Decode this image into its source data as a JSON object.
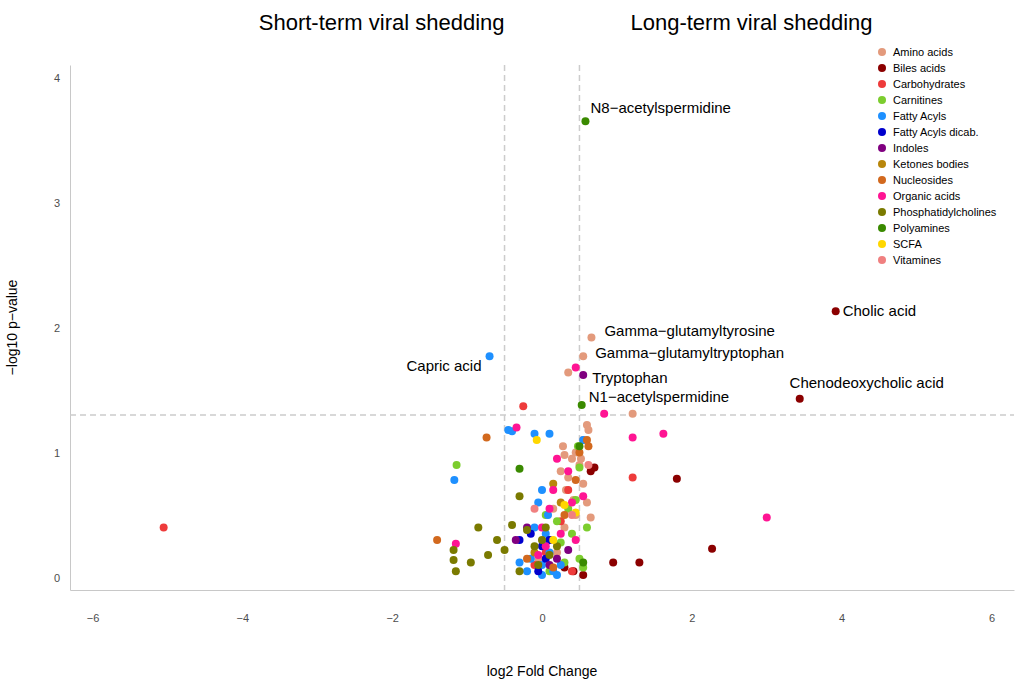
{
  "chart_data": {
    "type": "scatter",
    "headers": [
      "Short-term viral shedding",
      "Long-term viral shedding"
    ],
    "x_label": "log2 Fold Change",
    "y_label": "−log10 p−value",
    "xlim": [
      -6.3,
      6.3
    ],
    "xticks": [
      {
        "value": -6,
        "label": "−6"
      },
      {
        "value": -4,
        "label": "−4"
      },
      {
        "value": -2,
        "label": "−2"
      },
      0,
      2,
      4,
      6
    ],
    "ylim": [
      -0.1,
      4.1
    ],
    "yticks": [
      0,
      1,
      2,
      3,
      4
    ],
    "grid": false,
    "legend": "top-right",
    "thresholds": {
      "x": [
        -0.5,
        0.5
      ],
      "y": 1.3
    },
    "series": [
      {
        "name": "Amino acids",
        "color": "#e39a7c",
        "x": [
          0.66,
          0.55,
          0.35,
          1.21,
          0.6,
          0.62,
          0.55,
          0.45,
          0.3,
          0.4,
          0.5,
          0.25,
          0.35,
          0.55,
          0.6,
          0.45,
          0.3,
          0.1,
          0.2,
          -0.05,
          0.65,
          0.42,
          0.15,
          0.32,
          0.52,
          0.28
        ],
        "values": [
          1.92,
          1.77,
          1.64,
          1.31,
          1.22,
          1.18,
          1.1,
          1.0,
          0.98,
          0.95,
          0.9,
          0.85,
          0.8,
          0.75,
          0.6,
          0.5,
          0.4,
          0.3,
          0.2,
          0.15,
          0.48,
          0.62,
          0.55,
          0.7,
          0.95,
          1.05
        ]
      },
      {
        "name": "Biles acids",
        "color": "#8b0000",
        "x": [
          3.92,
          3.44,
          1.8,
          2.27,
          1.3,
          0.95,
          0.7,
          0.65,
          0.55,
          0.3,
          0.42
        ],
        "values": [
          2.13,
          1.43,
          0.79,
          0.23,
          0.12,
          0.12,
          0.88,
          0.85,
          0.02,
          0.08,
          0.05
        ]
      },
      {
        "name": "Carbohydrates",
        "color": "#ee3b3b",
        "x": [
          -5.05,
          1.21,
          -0.25,
          0.35,
          0.1,
          0.05,
          -0.1,
          0.25,
          0.4
        ],
        "values": [
          0.4,
          0.8,
          1.37,
          0.7,
          0.3,
          0.2,
          0.1,
          0.45,
          0.05
        ]
      },
      {
        "name": "Carnitines",
        "color": "#7ccd2e",
        "x": [
          -1.14,
          0.5,
          0.45,
          0.35,
          0.2,
          0.6,
          0.4,
          0.3,
          0.1,
          0.55,
          0.25,
          0.48,
          0.05,
          0.5
        ],
        "values": [
          0.9,
          0.88,
          0.62,
          0.55,
          0.45,
          0.4,
          0.35,
          0.12,
          0.05,
          0.08,
          0.28,
          1.05,
          0.5,
          0.15
        ]
      },
      {
        "name": "Fatty Acyls",
        "color": "#1e90ff",
        "x": [
          -0.7,
          -0.45,
          -0.4,
          -1.17,
          0.55,
          -0.1,
          0.1,
          0.0,
          -0.05,
          0.05,
          0.1,
          -0.15,
          0.0,
          0.15,
          -0.2,
          0.05,
          -0.1,
          0.2,
          -0.3,
          0.25,
          0.08,
          0.0
        ],
        "values": [
          1.77,
          1.18,
          1.17,
          0.78,
          1.1,
          1.15,
          1.15,
          0.7,
          0.6,
          0.28,
          0.2,
          0.15,
          0.1,
          0.05,
          0.05,
          0.35,
          0.4,
          0.02,
          0.12,
          0.1,
          0.5,
          0.02
        ]
      },
      {
        "name": "Fatty Acyls dicab.",
        "color": "#0000cd",
        "x": [
          -0.3,
          -0.15,
          0.0,
          0.05,
          -0.05,
          0.1
        ],
        "values": [
          0.3,
          0.35,
          0.25,
          0.15,
          0.05,
          0.3
        ]
      },
      {
        "name": "Indoles",
        "color": "#800080",
        "x": [
          0.55,
          -0.2,
          0.1,
          -0.35,
          0.35,
          0.2
        ],
        "values": [
          1.62,
          0.4,
          0.1,
          0.3,
          0.22,
          0.15
        ]
      },
      {
        "name": "Ketones bodies",
        "color": "#b8860b",
        "x": [
          0.25,
          -0.1,
          0.15
        ],
        "values": [
          0.6,
          0.2,
          0.75
        ]
      },
      {
        "name": "Nucleosides",
        "color": "#d2691e",
        "x": [
          -0.74,
          -1.4,
          0.6,
          0.62,
          0.5,
          0.3,
          0.45,
          -0.2,
          0.15
        ],
        "values": [
          1.12,
          0.3,
          1.1,
          1.05,
          1.0,
          0.5,
          0.78,
          0.15,
          0.08
        ]
      },
      {
        "name": "Organic acids",
        "color": "#ff1493",
        "x": [
          3.0,
          1.62,
          0.83,
          0.45,
          1.21,
          -1.15,
          -0.34,
          0.2,
          0.15,
          0.35,
          0.0,
          0.05,
          -0.05,
          0.25,
          0.4,
          0.45,
          0.55,
          0.1
        ],
        "values": [
          0.48,
          1.15,
          1.31,
          1.68,
          1.12,
          0.27,
          1.2,
          0.95,
          0.7,
          0.85,
          0.4,
          0.25,
          0.18,
          0.35,
          0.6,
          0.3,
          0.65,
          0.55
        ]
      },
      {
        "name": "Phosphatidylcholines",
        "color": "#7a7a00",
        "x": [
          -1.18,
          -1.15,
          -1.18,
          -0.95,
          -0.85,
          -0.72,
          -0.6,
          -0.5,
          -0.4,
          -0.3,
          -0.2,
          -0.1,
          0.0,
          0.1,
          -0.05,
          0.05,
          0.2,
          -0.3
        ],
        "values": [
          0.22,
          0.05,
          0.14,
          0.12,
          0.4,
          0.18,
          0.3,
          0.22,
          0.42,
          0.65,
          0.38,
          0.25,
          0.3,
          0.18,
          0.1,
          0.4,
          0.25,
          0.05
        ]
      },
      {
        "name": "Polyamines",
        "color": "#3a8a00",
        "x": [
          0.58,
          0.53,
          -0.3,
          0.5,
          0.55
        ],
        "values": [
          3.65,
          1.38,
          0.87,
          1.05,
          0.12
        ]
      },
      {
        "name": "SCFA",
        "color": "#ffd700",
        "x": [
          -0.07,
          0.45,
          0.3,
          0.15
        ],
        "values": [
          1.1,
          0.52,
          0.58,
          0.3
        ]
      },
      {
        "name": "Vitamines",
        "color": "#f08080",
        "x": [
          0.62,
          0.4,
          -0.1
        ],
        "values": [
          0.9,
          0.5,
          0.55
        ]
      }
    ],
    "annotations": [
      {
        "text": "N8−acetylspermidine",
        "x": 0.58,
        "y": 3.65
      },
      {
        "text": "Cholic acid",
        "x": 3.92,
        "y": 2.13
      },
      {
        "text": "Gamma−glutamyltyrosine",
        "x": 0.66,
        "y": 1.92
      },
      {
        "text": "Gamma−glutamyltryptophan",
        "x": 0.55,
        "y": 1.77
      },
      {
        "text": "Capric acid",
        "x": -0.7,
        "y": 1.77
      },
      {
        "text": "Tryptophan",
        "x": 0.55,
        "y": 1.62
      },
      {
        "text": "Chenodeoxycholic acid",
        "x": 3.44,
        "y": 1.43
      },
      {
        "text": "N1−acetylspermidine",
        "x": 0.53,
        "y": 1.38
      }
    ]
  }
}
